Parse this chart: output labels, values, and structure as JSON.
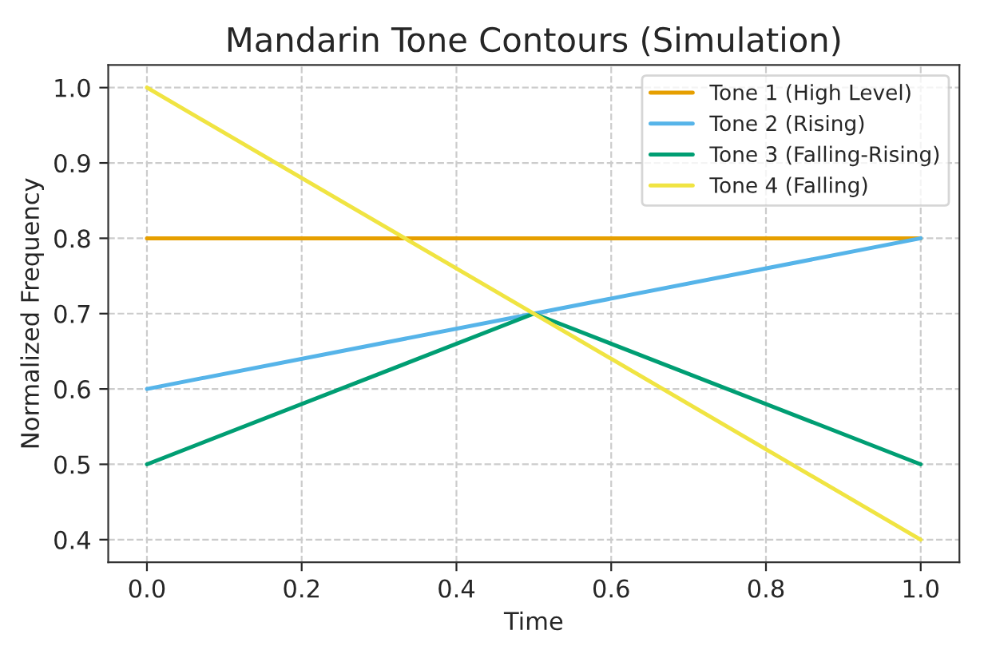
{
  "chart_data": {
    "type": "line",
    "title": "Mandarin Tone Contours (Simulation)",
    "xlabel": "Time",
    "ylabel": "Normalized Frequency",
    "series": [
      {
        "name": "Tone 1 (High Level)",
        "color": "#e69f00",
        "x": [
          0,
          1
        ],
        "values": [
          0.8,
          0.8
        ]
      },
      {
        "name": "Tone 2 (Rising)",
        "color": "#56b4e9",
        "x": [
          0,
          1
        ],
        "values": [
          0.6,
          0.8
        ]
      },
      {
        "name": "Tone 3 (Falling-Rising)",
        "color": "#009e73",
        "x": [
          0,
          0.5,
          1
        ],
        "values": [
          0.5,
          0.7,
          0.5
        ]
      },
      {
        "name": "Tone 4 (Falling)",
        "color": "#f0e442",
        "x": [
          0,
          1
        ],
        "values": [
          1.0,
          0.4
        ]
      }
    ],
    "xlim": [
      -0.05,
      1.05
    ],
    "ylim": [
      0.37,
      1.03
    ],
    "xticks": [
      {
        "value": 0,
        "label": "0.0"
      },
      0.2,
      0.4,
      0.6,
      0.8,
      {
        "value": 1,
        "label": "1.0"
      }
    ],
    "yticks": [
      0.4,
      0.5,
      0.6,
      0.7,
      0.8,
      0.9,
      {
        "value": 1,
        "label": "1.0"
      }
    ],
    "grid": true,
    "legend": "top right",
    "line_style": "solid"
  }
}
